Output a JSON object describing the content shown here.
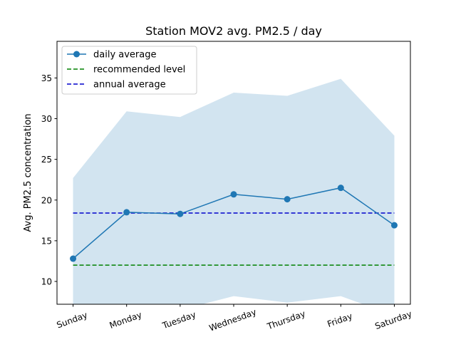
{
  "chart_data": {
    "type": "line",
    "title": "Station MOV2 avg. PM2.5 / day",
    "xlabel": "",
    "ylabel": "Avg. PM2.5 concentration",
    "categories": [
      "Sunday",
      "Monday",
      "Tuesday",
      "Wednesday",
      "Thursday",
      "Friday",
      "Saturday"
    ],
    "ylim": [
      7.2,
      39.5
    ],
    "yticks": [
      10,
      15,
      20,
      25,
      30,
      35
    ],
    "series": [
      {
        "name": "daily average",
        "values": [
          12.8,
          18.5,
          18.3,
          20.7,
          20.1,
          21.5,
          16.9
        ],
        "color": "#1f77b4"
      }
    ],
    "band": {
      "upper": [
        22.7,
        30.9,
        30.2,
        33.2,
        32.8,
        34.9,
        27.9
      ],
      "lower": [
        3.0,
        6.1,
        6.5,
        8.2,
        7.4,
        8.2,
        5.8
      ],
      "color": "#1f77b4"
    },
    "reference_lines": [
      {
        "name": "recommended level",
        "value": 12.0,
        "color": "#008000",
        "style": "dashed"
      },
      {
        "name": "annual average",
        "value": 18.4,
        "color": "#0000cc",
        "style": "dashed"
      }
    ],
    "legend": {
      "position": "top-left",
      "entries": [
        "daily average",
        "recommended level",
        "annual average"
      ]
    },
    "grid": false
  }
}
